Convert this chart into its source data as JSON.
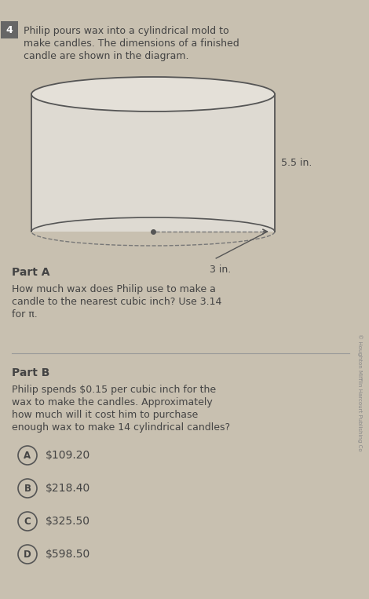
{
  "bg_color": "#c8c0b0",
  "paper_color": "#e8e4dc",
  "title_number": "4",
  "intro_text_line1": "Philip pours wax into a cylindrical mold to",
  "intro_text_line2": "make candles. The dimensions of a finished",
  "intro_text_line3": "candle are shown in the diagram.",
  "dim_height": "5.5 in.",
  "dim_radius": "3 in.",
  "part_a_label": "Part A",
  "part_a_text_line1": "How much wax does Philip use to make a",
  "part_a_text_line2": "candle to the nearest cubic inch? Use 3.14",
  "part_a_text_line3": "for π.",
  "part_b_label": "Part B",
  "part_b_text_line1": "Philip spends $0.15 per cubic inch for the",
  "part_b_text_line2": "wax to make the candles. Approximately",
  "part_b_text_line3": "how much will it cost him to purchase",
  "part_b_text_line4": "enough wax to make 14 cylindrical candles?",
  "choices": [
    {
      "label": "A",
      "text": "$109.20"
    },
    {
      "label": "B",
      "text": "$218.40"
    },
    {
      "label": "C",
      "text": "$325.50"
    },
    {
      "label": "D",
      "text": "$598.50"
    }
  ],
  "copyright_text": "© Houghton Mifflin Harcourt Publishing Co",
  "text_color": "#444444",
  "line_color": "#555555",
  "dashed_color": "#777777",
  "cylinder_face_color": "#f0ece4",
  "cylinder_top_color": "#e4e0d8",
  "cylinder_body_color": "#dedad2"
}
